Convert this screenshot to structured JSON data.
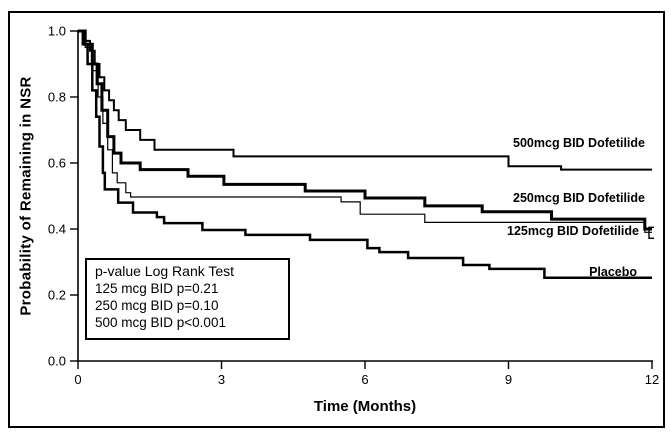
{
  "figure": {
    "background": "#ffffff",
    "border_color": "#000000",
    "line_color": "#000000"
  },
  "y_axis": {
    "title": "Probability of Remaining in NSR",
    "ticks": [
      "1.0",
      "0.8",
      "0.6",
      "0.4",
      "0.2",
      "0.0"
    ]
  },
  "x_axis": {
    "title": "Time (Months)",
    "ticks": [
      "0",
      "3",
      "6",
      "9",
      "12"
    ]
  },
  "legend_box": {
    "title": "p-value Log Rank Test",
    "lines": [
      "125 mcg BID p=0.21",
      "250 mcg BID p=0.10",
      "500 mcg BID p<0.001"
    ]
  },
  "chart_data": {
    "type": "line",
    "subtype": "kaplan-meier-step",
    "title": "",
    "xlabel": "Time (Months)",
    "ylabel": "Probability of Remaining in NSR",
    "xlim": [
      0,
      12
    ],
    "ylim": [
      0.0,
      1.0
    ],
    "x_ticks": [
      0,
      3,
      6,
      9,
      12
    ],
    "y_ticks": [
      1.0,
      0.8,
      0.6,
      0.4,
      0.2,
      0.0
    ],
    "grid": false,
    "legend_position": "right-of-curves",
    "series": [
      {
        "name": "500mcg BID Dofetilide",
        "p_value": "p<0.001",
        "line_width": 2,
        "x_end": 12,
        "censor_mark": false,
        "points": [
          [
            0,
            1.0
          ],
          [
            0.15,
            0.97
          ],
          [
            0.25,
            0.94
          ],
          [
            0.35,
            0.9
          ],
          [
            0.45,
            0.86
          ],
          [
            0.55,
            0.82
          ],
          [
            0.65,
            0.79
          ],
          [
            0.75,
            0.76
          ],
          [
            0.85,
            0.73
          ],
          [
            1.0,
            0.7
          ],
          [
            1.3,
            0.67
          ],
          [
            1.6,
            0.64
          ],
          [
            3.25,
            0.62
          ],
          [
            9.0,
            0.59
          ],
          [
            10.1,
            0.58
          ]
        ]
      },
      {
        "name": "250mcg BID Dofetilide",
        "p_value": "p=0.10",
        "line_width": 3,
        "x_end": 12,
        "censor_mark": false,
        "points": [
          [
            0,
            1.0
          ],
          [
            0.15,
            0.96
          ],
          [
            0.3,
            0.9
          ],
          [
            0.4,
            0.84
          ],
          [
            0.5,
            0.76
          ],
          [
            0.62,
            0.68
          ],
          [
            0.75,
            0.63
          ],
          [
            0.9,
            0.6
          ],
          [
            1.3,
            0.58
          ],
          [
            2.3,
            0.56
          ],
          [
            3.05,
            0.535
          ],
          [
            4.75,
            0.515
          ],
          [
            6.0,
            0.494
          ],
          [
            7.25,
            0.47
          ],
          [
            8.45,
            0.452
          ],
          [
            9.9,
            0.43
          ],
          [
            11.85,
            0.4
          ]
        ]
      },
      {
        "name": "125mcg BID Dofetilide",
        "p_value": "p=0.21",
        "line_width": 1.2,
        "x_end": 12,
        "censor_mark": true,
        "points": [
          [
            0,
            1.0
          ],
          [
            0.15,
            0.95
          ],
          [
            0.3,
            0.88
          ],
          [
            0.42,
            0.8
          ],
          [
            0.52,
            0.72
          ],
          [
            0.62,
            0.64
          ],
          [
            0.72,
            0.57
          ],
          [
            0.82,
            0.54
          ],
          [
            1.0,
            0.51
          ],
          [
            1.1,
            0.497
          ],
          [
            5.5,
            0.482
          ],
          [
            5.9,
            0.445
          ],
          [
            7.25,
            0.42
          ],
          [
            11.85,
            0.39
          ]
        ]
      },
      {
        "name": "Placebo",
        "p_value": "",
        "line_width": 2.5,
        "x_end": 12,
        "censor_mark": false,
        "points": [
          [
            0,
            1.0
          ],
          [
            0.1,
            0.96
          ],
          [
            0.2,
            0.9
          ],
          [
            0.3,
            0.82
          ],
          [
            0.38,
            0.74
          ],
          [
            0.45,
            0.65
          ],
          [
            0.52,
            0.57
          ],
          [
            0.56,
            0.52
          ],
          [
            0.84,
            0.48
          ],
          [
            1.15,
            0.45
          ],
          [
            1.65,
            0.436
          ],
          [
            1.8,
            0.418
          ],
          [
            2.6,
            0.397
          ],
          [
            3.5,
            0.382
          ],
          [
            4.85,
            0.367
          ],
          [
            6.05,
            0.342
          ],
          [
            6.3,
            0.33
          ],
          [
            6.9,
            0.312
          ],
          [
            8.05,
            0.291
          ],
          [
            8.6,
            0.279
          ],
          [
            9.75,
            0.252
          ]
        ]
      }
    ]
  }
}
